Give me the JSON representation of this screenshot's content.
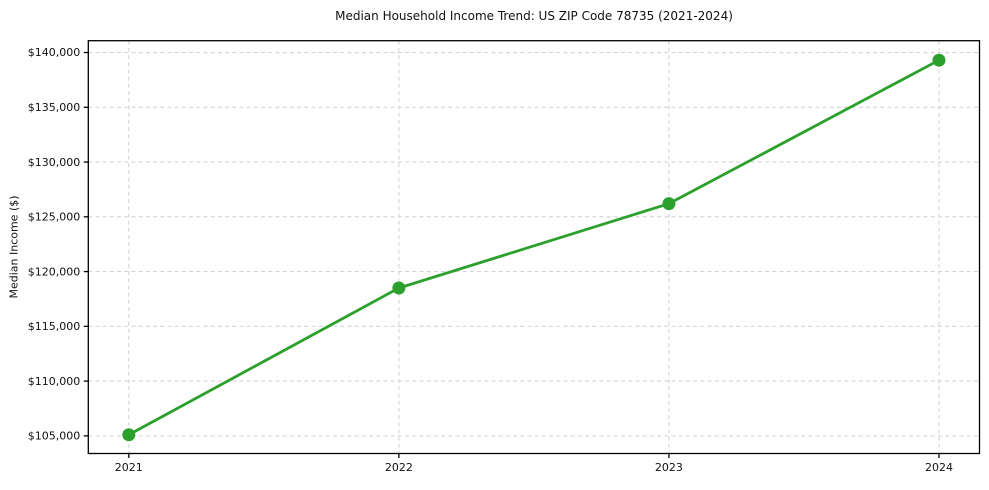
{
  "figure": {
    "title": "Median Household Income Trend: US ZIP Code 78735 (2021-2024)",
    "y_axis_label": "Median Income ($)"
  },
  "chart_data": {
    "type": "line",
    "title": "Median Household Income Trend: US ZIP Code 78735 (2021-2024)",
    "xlabel": "",
    "ylabel": "Median Income ($)",
    "x": [
      2021,
      2022,
      2023,
      2024
    ],
    "categories": [
      "2021",
      "2022",
      "2023",
      "2024"
    ],
    "series": [
      {
        "name": "Median Household Income",
        "values": [
          105100,
          118500,
          126200,
          139300
        ]
      }
    ],
    "yticks": [
      105000,
      110000,
      115000,
      120000,
      125000,
      130000,
      135000,
      140000
    ],
    "ytick_labels": [
      "$105,000",
      "$110,000",
      "$115,000",
      "$120,000",
      "$125,000",
      "$130,000",
      "$135,000",
      "$140,000"
    ],
    "xlim": [
      2020.85,
      2024.15
    ],
    "ylim": [
      103390,
      141080
    ],
    "grid": true,
    "grid_style": "dashed",
    "legend": "none",
    "line_color": "#2ca02c",
    "marker": "circle",
    "marker_radius": 6.5,
    "line_width": 2.8,
    "grid_color": "#d4d4d4",
    "spine_color": "#000000",
    "background": "#ffffff"
  }
}
